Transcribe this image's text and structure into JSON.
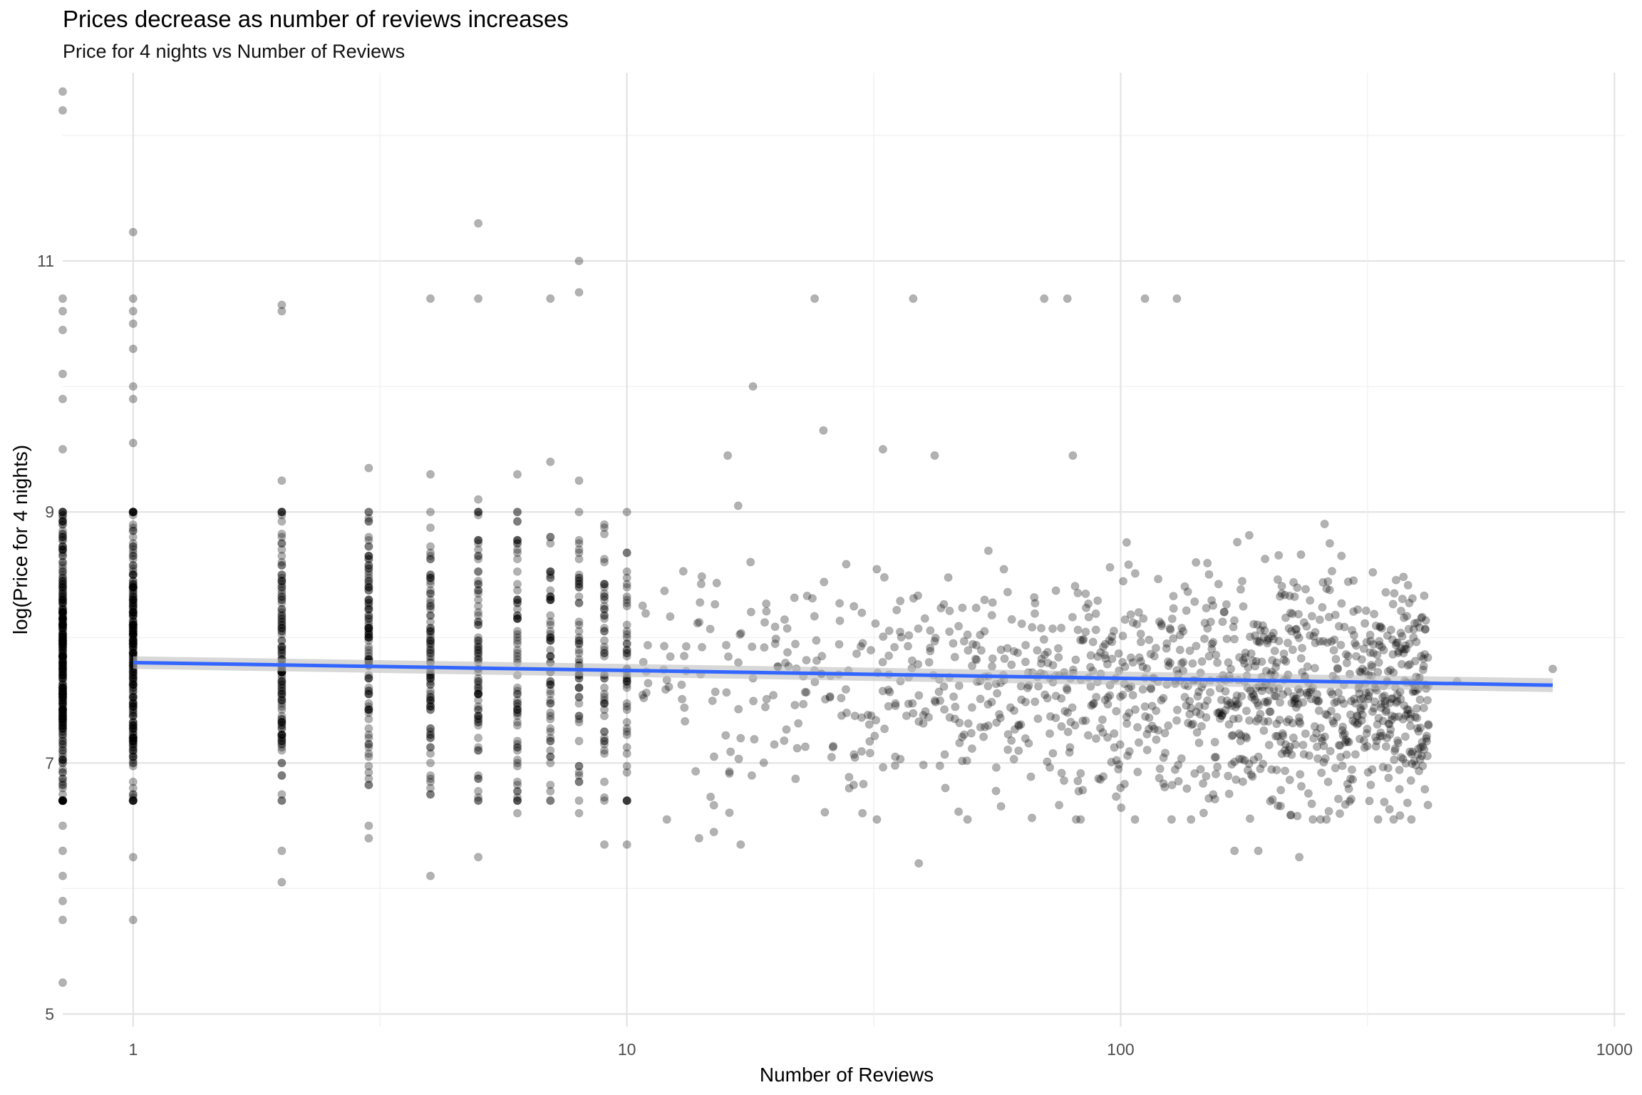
{
  "chart_data": {
    "type": "scatter",
    "title": "Prices decrease as number of reviews increases",
    "subtitle": "Price for 4 nights vs Number of Reviews",
    "xlabel": "Number of Reviews",
    "ylabel": "log(Price for 4 nights)",
    "x_scale": "log10",
    "xlim": [
      0.72,
      1050
    ],
    "ylim": [
      4.9,
      12.5
    ],
    "x_ticks": [
      {
        "value": 1,
        "label": "1"
      },
      {
        "value": 10,
        "label": "10"
      },
      {
        "value": 100,
        "label": "100"
      },
      {
        "value": 1000,
        "label": "1000"
      }
    ],
    "y_ticks": [
      {
        "value": 5,
        "label": "5"
      },
      {
        "value": 7,
        "label": "7"
      },
      {
        "value": 9,
        "label": "9"
      },
      {
        "value": 11,
        "label": "11"
      }
    ],
    "grid": true,
    "legend": "none",
    "point_color": "#000000",
    "point_opacity": 0.3,
    "trend_line": {
      "color": "#3366FF",
      "band_color": "#BEBEBE",
      "points": [
        [
          1,
          7.8
        ],
        [
          750,
          7.62
        ]
      ],
      "band_halfwidth": [
        0.05,
        0.055
      ]
    },
    "outliers": [
      [
        0.72,
        12.35
      ],
      [
        0.72,
        12.2
      ],
      [
        0.72,
        10.7
      ],
      [
        0.72,
        10.6
      ],
      [
        0.72,
        10.45
      ],
      [
        0.72,
        10.1
      ],
      [
        0.72,
        9.9
      ],
      [
        0.72,
        9.5
      ],
      [
        0.72,
        6.5
      ],
      [
        0.72,
        6.3
      ],
      [
        0.72,
        6.1
      ],
      [
        0.72,
        5.9
      ],
      [
        0.72,
        5.75
      ],
      [
        0.72,
        5.25
      ],
      [
        1,
        11.23
      ],
      [
        1,
        10.7
      ],
      [
        1,
        10.6
      ],
      [
        1,
        10.5
      ],
      [
        1,
        10.3
      ],
      [
        1,
        10.0
      ],
      [
        1,
        9.9
      ],
      [
        1,
        9.55
      ],
      [
        1,
        6.25
      ],
      [
        1,
        5.75
      ],
      [
        2,
        10.65
      ],
      [
        2,
        10.6
      ],
      [
        2,
        9.25
      ],
      [
        2,
        6.3
      ],
      [
        2,
        6.05
      ],
      [
        3,
        9.35
      ],
      [
        3,
        6.5
      ],
      [
        3,
        6.4
      ],
      [
        4,
        10.7
      ],
      [
        4,
        9.3
      ],
      [
        4,
        6.1
      ],
      [
        5,
        11.3
      ],
      [
        5,
        10.7
      ],
      [
        5,
        9.1
      ],
      [
        5,
        6.25
      ],
      [
        6,
        9.3
      ],
      [
        6,
        6.6
      ],
      [
        7,
        10.7
      ],
      [
        7,
        9.4
      ],
      [
        8,
        11.0
      ],
      [
        8,
        10.75
      ],
      [
        8,
        9.25
      ],
      [
        8,
        6.6
      ],
      [
        9,
        6.35
      ],
      [
        10,
        6.35
      ],
      [
        14,
        6.4
      ],
      [
        15,
        6.45
      ],
      [
        16,
        9.45
      ],
      [
        17,
        6.35
      ],
      [
        18,
        10.0
      ],
      [
        24,
        10.7
      ],
      [
        25,
        9.65
      ],
      [
        30,
        6.6
      ],
      [
        33,
        9.5
      ],
      [
        38,
        10.7
      ],
      [
        39,
        6.2
      ],
      [
        42,
        9.45
      ],
      [
        70,
        10.7
      ],
      [
        78,
        10.7
      ],
      [
        80,
        9.45
      ],
      [
        112,
        10.7
      ],
      [
        130,
        10.7
      ],
      [
        170,
        6.3
      ],
      [
        190,
        6.3
      ],
      [
        230,
        6.25
      ],
      [
        280,
        8.65
      ],
      [
        420,
        7.3
      ],
      [
        480,
        7.65
      ],
      [
        750,
        7.75
      ]
    ]
  }
}
